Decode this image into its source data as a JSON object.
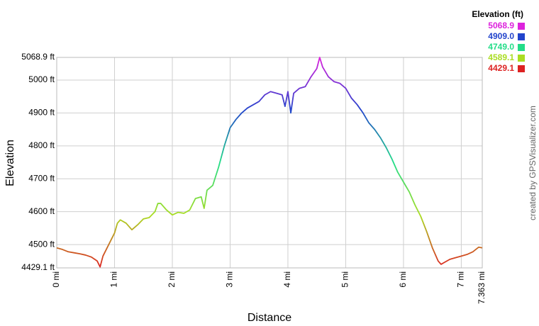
{
  "chart_data": {
    "type": "line",
    "x_label": "Distance",
    "y_label": "Elevation",
    "credit": "created by GPSVisualizer.com",
    "x": [
      0,
      0.1,
      0.2,
      0.3,
      0.4,
      0.5,
      0.6,
      0.7,
      0.75,
      0.8,
      0.9,
      1.0,
      1.05,
      1.1,
      1.2,
      1.3,
      1.4,
      1.5,
      1.6,
      1.7,
      1.75,
      1.8,
      1.9,
      2.0,
      2.1,
      2.2,
      2.3,
      2.4,
      2.5,
      2.55,
      2.6,
      2.7,
      2.8,
      2.9,
      3.0,
      3.1,
      3.2,
      3.3,
      3.4,
      3.5,
      3.6,
      3.7,
      3.8,
      3.9,
      3.95,
      4.0,
      4.05,
      4.1,
      4.2,
      4.3,
      4.4,
      4.5,
      4.55,
      4.6,
      4.7,
      4.8,
      4.9,
      5.0,
      5.1,
      5.2,
      5.3,
      5.4,
      5.5,
      5.6,
      5.7,
      5.8,
      5.9,
      6.0,
      6.1,
      6.2,
      6.3,
      6.4,
      6.5,
      6.6,
      6.65,
      6.7,
      6.8,
      6.9,
      7.0,
      7.1,
      7.2,
      7.3,
      7.363
    ],
    "values": [
      4490,
      4485,
      4478,
      4475,
      4472,
      4468,
      4462,
      4450,
      4432,
      4465,
      4500,
      4535,
      4565,
      4575,
      4565,
      4545,
      4560,
      4578,
      4582,
      4600,
      4625,
      4625,
      4605,
      4590,
      4598,
      4595,
      4605,
      4640,
      4645,
      4610,
      4665,
      4680,
      4735,
      4800,
      4855,
      4880,
      4900,
      4915,
      4925,
      4935,
      4955,
      4965,
      4960,
      4955,
      4920,
      4965,
      4900,
      4960,
      4975,
      4980,
      5010,
      5035,
      5068.9,
      5040,
      5010,
      4995,
      4990,
      4975,
      4945,
      4925,
      4900,
      4870,
      4850,
      4825,
      4795,
      4760,
      4720,
      4690,
      4660,
      4620,
      4585,
      4540,
      4490,
      4450,
      4440,
      4445,
      4455,
      4460,
      4465,
      4470,
      4478,
      4492,
      4490
    ],
    "xlim": [
      0,
      7.363
    ],
    "xticks": [
      {
        "value": 0,
        "label": "0 mi"
      },
      {
        "value": 1,
        "label": "1 mi"
      },
      {
        "value": 2,
        "label": "2 mi"
      },
      {
        "value": 3,
        "label": "3 mi"
      },
      {
        "value": 4,
        "label": "4 mi"
      },
      {
        "value": 5,
        "label": "5 mi"
      },
      {
        "value": 6,
        "label": "6 mi"
      },
      {
        "value": 7,
        "label": "7 mi"
      },
      {
        "value": 7.363,
        "label": "7.363 mi"
      }
    ],
    "ylim": [
      4429.1,
      5068.9
    ],
    "yticks": [
      {
        "value": 4429.1,
        "label": "4429.1 ft"
      },
      {
        "value": 4500,
        "label": "4500 ft"
      },
      {
        "value": 4600,
        "label": "4600 ft"
      },
      {
        "value": 4700,
        "label": "4700 ft"
      },
      {
        "value": 4800,
        "label": "4800 ft"
      },
      {
        "value": 4900,
        "label": "4900 ft"
      },
      {
        "value": 5000,
        "label": "5000 ft"
      },
      {
        "value": 5068.9,
        "label": "5068.9 ft"
      }
    ],
    "grid": true,
    "color_scale": {
      "title": "Elevation (ft)",
      "values": [
        5068.9,
        4909.0,
        4749.0,
        4589.1,
        4429.1
      ],
      "value_labels": [
        "5068.9",
        "4909.0",
        "4749.0",
        "4589.1",
        "4429.1"
      ],
      "colors": [
        "#dd22dd",
        "#2244cc",
        "#22dd88",
        "#aadd22",
        "#dd2222"
      ]
    }
  }
}
